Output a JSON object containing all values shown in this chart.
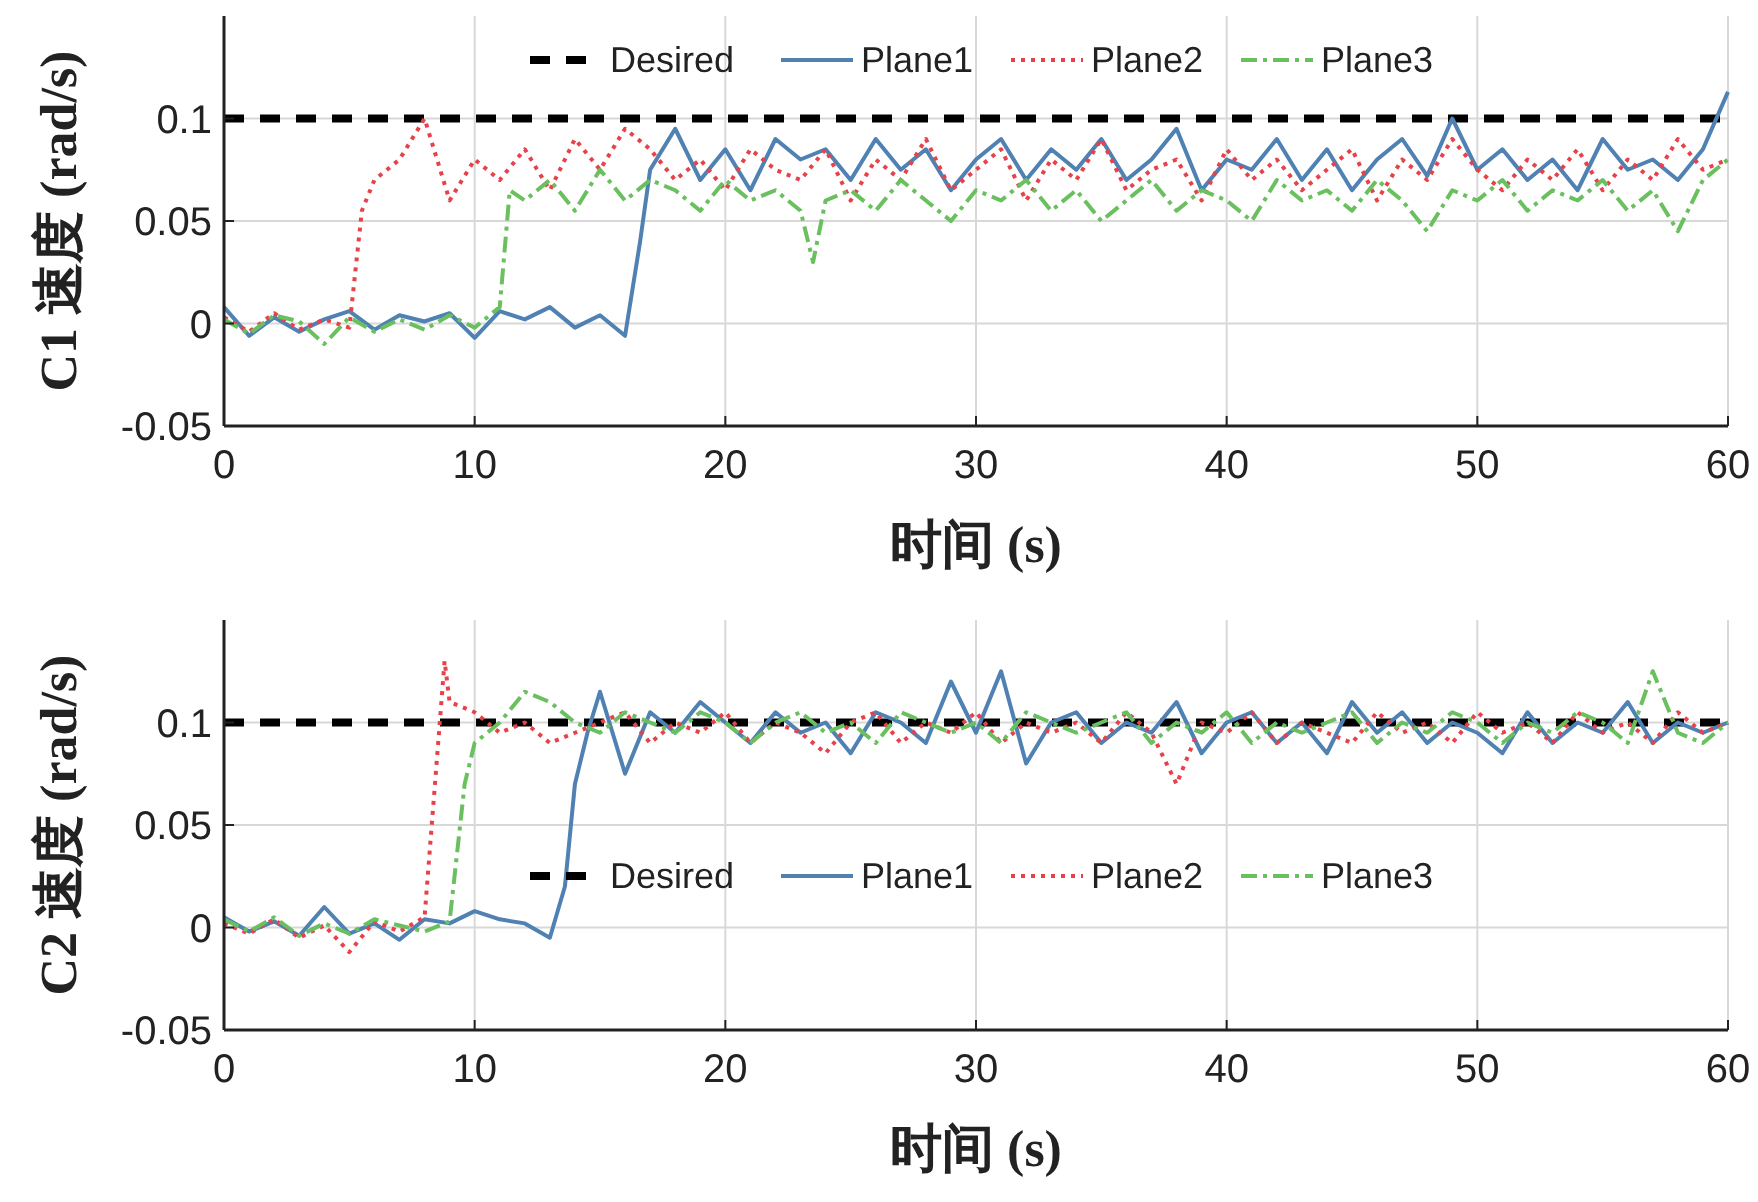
{
  "chart_data": [
    {
      "type": "line",
      "xlabel": "时间 (s)",
      "ylabel": "C1 速度 (rad/s)",
      "xlim": [
        0,
        60
      ],
      "xticks": [
        0,
        10,
        20,
        30,
        40,
        50,
        60
      ],
      "ylim": [
        -0.05,
        0.15
      ],
      "yticks": [
        {
          "value": -0.05,
          "label": "-0.05"
        },
        0,
        0.05,
        0.1
      ],
      "grid": true,
      "legend": "top",
      "series": [
        {
          "name": "Desired",
          "color": "#000000",
          "line_style": "dashed",
          "x": [
            0,
            60
          ],
          "values": [
            0.1,
            0.1
          ]
        },
        {
          "name": "Plane1",
          "color": "#4f81b3",
          "line_style": "solid",
          "x": [
            0,
            1,
            2,
            3,
            4,
            5,
            6,
            7,
            8,
            9,
            10,
            11,
            12,
            13,
            14,
            15,
            16,
            16.6,
            17,
            18,
            19,
            20,
            21,
            22,
            23,
            24,
            25,
            26,
            27,
            28,
            29,
            30,
            31,
            32,
            33,
            34,
            35,
            36,
            37,
            38,
            39,
            40,
            41,
            42,
            43,
            44,
            45,
            46,
            47,
            48,
            49,
            50,
            51,
            52,
            53,
            54,
            55,
            56,
            57,
            58,
            59,
            60
          ],
          "values": [
            0.008,
            -0.006,
            0.003,
            -0.004,
            0.002,
            0.006,
            -0.003,
            0.004,
            0.001,
            0.005,
            -0.007,
            0.006,
            0.002,
            0.008,
            -0.002,
            0.004,
            -0.006,
            0.04,
            0.075,
            0.095,
            0.07,
            0.085,
            0.065,
            0.09,
            0.08,
            0.085,
            0.07,
            0.09,
            0.075,
            0.085,
            0.065,
            0.08,
            0.09,
            0.07,
            0.085,
            0.075,
            0.09,
            0.07,
            0.08,
            0.095,
            0.065,
            0.08,
            0.075,
            0.09,
            0.07,
            0.085,
            0.065,
            0.08,
            0.09,
            0.072,
            0.1,
            0.075,
            0.085,
            0.07,
            0.08,
            0.065,
            0.09,
            0.075,
            0.08,
            0.07,
            0.085,
            0.113
          ]
        },
        {
          "name": "Plane2",
          "color": "#e8414a",
          "line_style": "dotted",
          "x": [
            0,
            1,
            2,
            3,
            4,
            5,
            5.5,
            6,
            7,
            8,
            9,
            10,
            11,
            12,
            13,
            14,
            15,
            16,
            17,
            18,
            19,
            20,
            21,
            22,
            23,
            24,
            25,
            26,
            27,
            28,
            29,
            30,
            31,
            32,
            33,
            34,
            35,
            36,
            37,
            38,
            39,
            40,
            41,
            42,
            43,
            44,
            45,
            46,
            47,
            48,
            49,
            50,
            51,
            52,
            53,
            54,
            55,
            56,
            57,
            58,
            59,
            60
          ],
          "values": [
            0.003,
            -0.004,
            0.005,
            -0.003,
            0.002,
            -0.002,
            0.055,
            0.07,
            0.08,
            0.1,
            0.06,
            0.08,
            0.07,
            0.085,
            0.065,
            0.09,
            0.075,
            0.095,
            0.085,
            0.07,
            0.08,
            0.065,
            0.085,
            0.075,
            0.07,
            0.085,
            0.06,
            0.08,
            0.07,
            0.09,
            0.065,
            0.075,
            0.085,
            0.06,
            0.08,
            0.07,
            0.09,
            0.065,
            0.075,
            0.08,
            0.06,
            0.085,
            0.07,
            0.08,
            0.065,
            0.075,
            0.085,
            0.06,
            0.08,
            0.07,
            0.09,
            0.075,
            0.065,
            0.08,
            0.07,
            0.085,
            0.065,
            0.08,
            0.07,
            0.09,
            0.075,
            0.08
          ]
        },
        {
          "name": "Plane3",
          "color": "#6abf5f",
          "line_style": "dashdot",
          "x": [
            0,
            1,
            2,
            3,
            4,
            5,
            6,
            7,
            8,
            9,
            10,
            11,
            11.4,
            12,
            13,
            14,
            15,
            16,
            17,
            18,
            19,
            20,
            21,
            22,
            23,
            23.5,
            24,
            25,
            26,
            27,
            28,
            29,
            30,
            31,
            32,
            33,
            34,
            35,
            36,
            37,
            38,
            39,
            40,
            41,
            42,
            43,
            44,
            45,
            46,
            47,
            48,
            49,
            50,
            51,
            52,
            53,
            54,
            55,
            56,
            57,
            58,
            59,
            60
          ],
          "values": [
            0.002,
            -0.005,
            0.004,
            0.001,
            -0.01,
            0.003,
            -0.004,
            0.002,
            -0.003,
            0.004,
            -0.002,
            0.008,
            0.065,
            0.06,
            0.07,
            0.055,
            0.075,
            0.06,
            0.07,
            0.065,
            0.055,
            0.07,
            0.06,
            0.065,
            0.055,
            0.03,
            0.06,
            0.065,
            0.055,
            0.07,
            0.06,
            0.05,
            0.065,
            0.06,
            0.07,
            0.055,
            0.065,
            0.05,
            0.06,
            0.07,
            0.055,
            0.065,
            0.06,
            0.05,
            0.07,
            0.06,
            0.065,
            0.055,
            0.07,
            0.06,
            0.045,
            0.065,
            0.06,
            0.07,
            0.055,
            0.065,
            0.06,
            0.07,
            0.055,
            0.065,
            0.045,
            0.07,
            0.08
          ]
        }
      ]
    },
    {
      "type": "line",
      "xlabel": "时间 (s)",
      "ylabel": "C2 速度 (rad/s)",
      "xlim": [
        0,
        60
      ],
      "xticks": [
        0,
        10,
        20,
        30,
        40,
        50,
        60
      ],
      "ylim": [
        -0.05,
        0.15
      ],
      "yticks": [
        {
          "value": -0.05,
          "label": "-0.05"
        },
        0,
        0.05,
        0.1
      ],
      "grid": true,
      "legend": "center",
      "series": [
        {
          "name": "Desired",
          "color": "#000000",
          "line_style": "dashed",
          "x": [
            0,
            60
          ],
          "values": [
            0.1,
            0.1
          ]
        },
        {
          "name": "Plane1",
          "color": "#4f81b3",
          "line_style": "solid",
          "x": [
            0,
            1,
            2,
            3,
            4,
            5,
            6,
            7,
            8,
            9,
            10,
            11,
            12,
            13,
            13.6,
            14,
            14.5,
            15,
            16,
            17,
            18,
            19,
            20,
            21,
            22,
            23,
            24,
            25,
            26,
            27,
            28,
            29,
            30,
            31,
            32,
            33,
            34,
            35,
            36,
            37,
            38,
            39,
            40,
            41,
            42,
            43,
            44,
            45,
            46,
            47,
            48,
            49,
            50,
            51,
            52,
            53,
            54,
            55,
            56,
            57,
            58,
            59,
            60
          ],
          "values": [
            0.005,
            -0.002,
            0.003,
            -0.004,
            0.01,
            -0.003,
            0.002,
            -0.006,
            0.004,
            0.002,
            0.008,
            0.004,
            0.002,
            -0.005,
            0.02,
            0.07,
            0.095,
            0.115,
            0.075,
            0.105,
            0.095,
            0.11,
            0.1,
            0.09,
            0.105,
            0.095,
            0.1,
            0.085,
            0.105,
            0.1,
            0.09,
            0.12,
            0.095,
            0.125,
            0.08,
            0.1,
            0.105,
            0.09,
            0.1,
            0.095,
            0.11,
            0.085,
            0.1,
            0.105,
            0.09,
            0.1,
            0.085,
            0.11,
            0.095,
            0.105,
            0.09,
            0.1,
            0.095,
            0.085,
            0.105,
            0.09,
            0.1,
            0.095,
            0.11,
            0.09,
            0.1,
            0.095,
            0.1
          ]
        },
        {
          "name": "Plane2",
          "color": "#e8414a",
          "line_style": "dotted",
          "x": [
            0,
            1,
            2,
            3,
            4,
            5,
            6,
            7,
            8,
            8.8,
            9,
            10,
            11,
            12,
            13,
            14,
            15,
            16,
            17,
            18,
            19,
            20,
            21,
            22,
            23,
            24,
            25,
            26,
            27,
            28,
            29,
            30,
            31,
            32,
            33,
            34,
            35,
            36,
            37,
            38,
            39,
            40,
            41,
            42,
            43,
            44,
            45,
            46,
            47,
            48,
            49,
            50,
            51,
            52,
            53,
            54,
            55,
            56,
            57,
            58,
            59,
            60
          ],
          "values": [
            0.002,
            -0.003,
            0.004,
            -0.005,
            0.001,
            -0.012,
            0.003,
            -0.002,
            0.005,
            0.13,
            0.11,
            0.105,
            0.095,
            0.1,
            0.09,
            0.095,
            0.1,
            0.105,
            0.09,
            0.1,
            0.095,
            0.105,
            0.09,
            0.1,
            0.095,
            0.085,
            0.1,
            0.105,
            0.09,
            0.1,
            0.095,
            0.105,
            0.09,
            0.1,
            0.095,
            0.1,
            0.09,
            0.105,
            0.095,
            0.07,
            0.1,
            0.095,
            0.105,
            0.09,
            0.1,
            0.095,
            0.09,
            0.105,
            0.095,
            0.1,
            0.09,
            0.105,
            0.095,
            0.1,
            0.09,
            0.105,
            0.095,
            0.1,
            0.09,
            0.105,
            0.095,
            0.1
          ]
        },
        {
          "name": "Plane3",
          "color": "#6abf5f",
          "line_style": "dashdot",
          "x": [
            0,
            1,
            2,
            3,
            4,
            5,
            6,
            7,
            8,
            9,
            9.6,
            10,
            11,
            12,
            13,
            14,
            15,
            16,
            17,
            18,
            19,
            20,
            21,
            22,
            23,
            24,
            25,
            26,
            27,
            28,
            29,
            30,
            31,
            32,
            33,
            34,
            35,
            36,
            37,
            38,
            39,
            40,
            41,
            42,
            43,
            44,
            45,
            46,
            47,
            48,
            49,
            50,
            51,
            52,
            53,
            54,
            55,
            56,
            57,
            58,
            59,
            60
          ],
          "values": [
            0.004,
            -0.002,
            0.005,
            -0.004,
            0.002,
            -0.003,
            0.004,
            0.001,
            -0.002,
            0.003,
            0.07,
            0.09,
            0.1,
            0.115,
            0.11,
            0.1,
            0.095,
            0.105,
            0.1,
            0.095,
            0.105,
            0.1,
            0.09,
            0.1,
            0.105,
            0.095,
            0.1,
            0.09,
            0.105,
            0.1,
            0.095,
            0.1,
            0.09,
            0.105,
            0.1,
            0.095,
            0.1,
            0.105,
            0.09,
            0.1,
            0.095,
            0.105,
            0.09,
            0.1,
            0.095,
            0.1,
            0.105,
            0.09,
            0.1,
            0.095,
            0.105,
            0.1,
            0.09,
            0.1,
            0.095,
            0.105,
            0.1,
            0.09,
            0.125,
            0.095,
            0.09,
            0.1
          ]
        }
      ]
    }
  ]
}
